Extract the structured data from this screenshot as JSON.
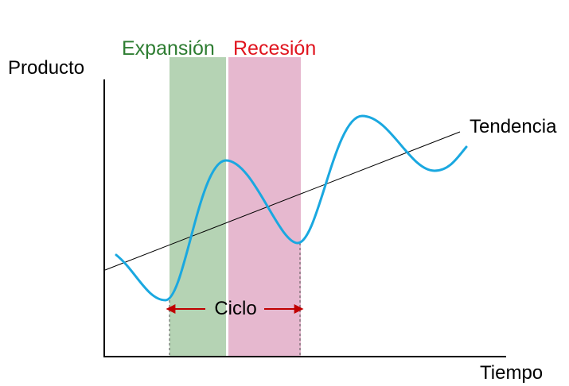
{
  "labels": {
    "y_axis": "Producto",
    "x_axis": "Tiempo",
    "expansion": "Expansión",
    "recession": "Recesión",
    "trend": "Tendencia",
    "cycle": "Ciclo"
  },
  "colors": {
    "expansion_band": "#b5d3b4",
    "recession_band": "#e6b8cf",
    "expansion_text": "#2e7d32",
    "recession_text": "#e0141e",
    "curve": "#1aa8e0",
    "axis": "#000000",
    "trend_line": "#000000",
    "cycle_arrow": "#c00000"
  }
}
